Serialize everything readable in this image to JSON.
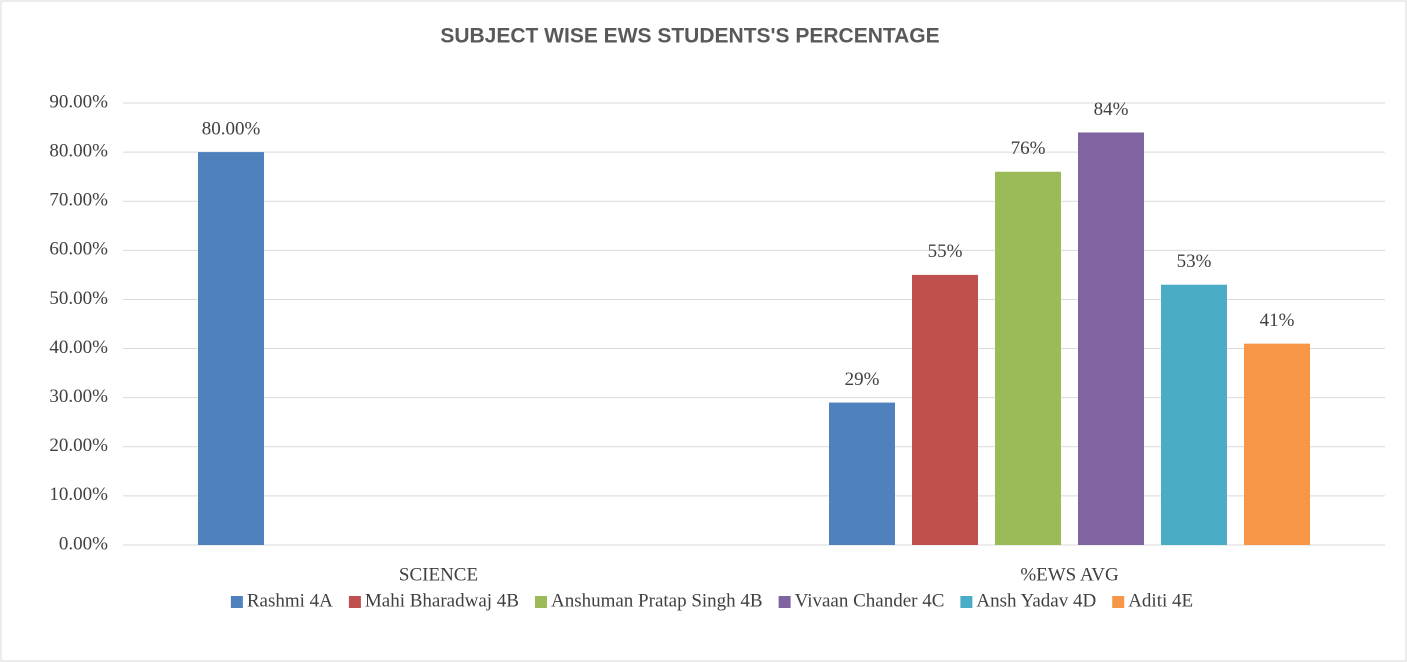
{
  "chart_data": {
    "type": "bar",
    "title": "SUBJECT WISE EWS STUDENTS'S PERCENTAGE",
    "categories": [
      "SCIENCE",
      "%EWS AVG"
    ],
    "series": [
      {
        "name": "Rashmi 4A",
        "color": "#4f81bd",
        "values": [
          80,
          29
        ],
        "value_labels": [
          "80.00%",
          "29%"
        ]
      },
      {
        "name": "Mahi Bharadwaj 4B",
        "color": "#c0504d",
        "values": [
          null,
          55
        ],
        "value_labels": [
          null,
          "55%"
        ]
      },
      {
        "name": "Anshuman Pratap Singh 4B",
        "color": "#9bbb59",
        "values": [
          null,
          76
        ],
        "value_labels": [
          null,
          "76%"
        ]
      },
      {
        "name": "Vivaan Chander 4C",
        "color": "#8064a2",
        "values": [
          null,
          84
        ],
        "value_labels": [
          null,
          "84%"
        ]
      },
      {
        "name": "Ansh Yadav 4D",
        "color": "#4bacc6",
        "values": [
          null,
          53
        ],
        "value_labels": [
          null,
          "53%"
        ]
      },
      {
        "name": "Aditi 4E",
        "color": "#f79646",
        "values": [
          null,
          41
        ],
        "value_labels": [
          null,
          "41%"
        ]
      }
    ],
    "ylim": [
      0,
      90
    ],
    "yticks": [
      {
        "value": 0,
        "label": "0.00%"
      },
      {
        "value": 10,
        "label": "10.00%"
      },
      {
        "value": 20,
        "label": "20.00%"
      },
      {
        "value": 30,
        "label": "30.00%"
      },
      {
        "value": 40,
        "label": "40.00%"
      },
      {
        "value": 50,
        "label": "50.00%"
      },
      {
        "value": 60,
        "label": "60.00%"
      },
      {
        "value": 70,
        "label": "70.00%"
      },
      {
        "value": 80,
        "label": "80.00%"
      },
      {
        "value": 90,
        "label": "90.00%"
      }
    ],
    "grid": true,
    "legend": "bottom"
  }
}
